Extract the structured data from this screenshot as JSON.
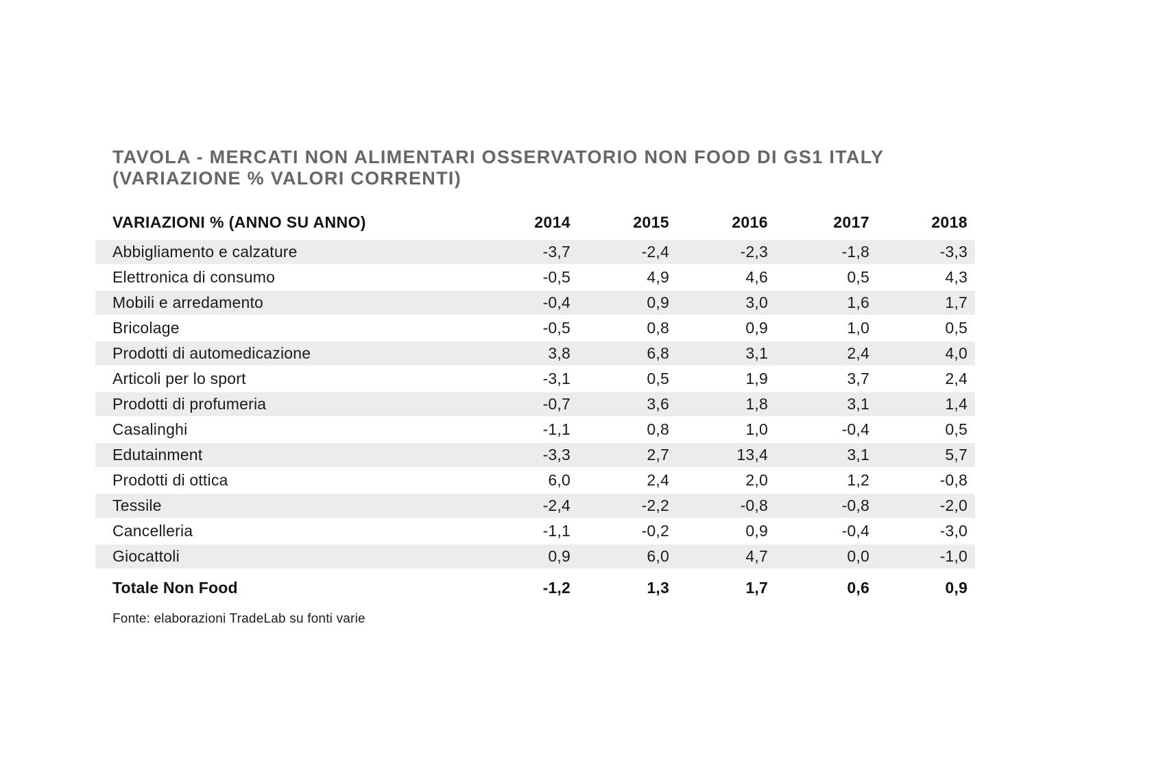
{
  "title": {
    "line1": "TAVOLA - MERCATI NON ALIMENTARI OSSERVATORIO NON FOOD DI GS1 ITALY",
    "line2": "(VARIAZIONE % VALORI CORRENTI)"
  },
  "table": {
    "header": {
      "label": "VARIAZIONI % (ANNO SU ANNO)",
      "years": [
        "2014",
        "2015",
        "2016",
        "2017",
        "2018"
      ]
    },
    "rows": [
      {
        "label": "Abbigliamento e calzature",
        "values": [
          "-3,7",
          "-2,4",
          "-2,3",
          "-1,8",
          "-3,3"
        ]
      },
      {
        "label": "Elettronica di consumo",
        "values": [
          "-0,5",
          "4,9",
          "4,6",
          "0,5",
          "4,3"
        ]
      },
      {
        "label": "Mobili e arredamento",
        "values": [
          "-0,4",
          "0,9",
          "3,0",
          "1,6",
          "1,7"
        ]
      },
      {
        "label": "Bricolage",
        "values": [
          "-0,5",
          "0,8",
          "0,9",
          "1,0",
          "0,5"
        ]
      },
      {
        "label": "Prodotti di automedicazione",
        "values": [
          "3,8",
          "6,8",
          "3,1",
          "2,4",
          "4,0"
        ]
      },
      {
        "label": "Articoli per lo sport",
        "values": [
          "-3,1",
          "0,5",
          "1,9",
          "3,7",
          "2,4"
        ]
      },
      {
        "label": "Prodotti di profumeria",
        "values": [
          "-0,7",
          "3,6",
          "1,8",
          "3,1",
          "1,4"
        ]
      },
      {
        "label": "Casalinghi",
        "values": [
          "-1,1",
          "0,8",
          "1,0",
          "-0,4",
          "0,5"
        ]
      },
      {
        "label": "Edutainment",
        "values": [
          "-3,3",
          "2,7",
          "13,4",
          "3,1",
          "5,7"
        ]
      },
      {
        "label": "Prodotti di ottica",
        "values": [
          "6,0",
          "2,4",
          "2,0",
          "1,2",
          "-0,8"
        ]
      },
      {
        "label": "Tessile",
        "values": [
          "-2,4",
          "-2,2",
          "-0,8",
          "-0,8",
          "-2,0"
        ]
      },
      {
        "label": "Cancelleria",
        "values": [
          "-1,1",
          "-0,2",
          "0,9",
          "-0,4",
          "-3,0"
        ]
      },
      {
        "label": "Giocattoli",
        "values": [
          "0,9",
          "6,0",
          "4,7",
          "0,0",
          "-1,0"
        ]
      }
    ],
    "total": {
      "label": "Totale Non Food",
      "values": [
        "-1,2",
        "1,3",
        "1,7",
        "0,6",
        "0,9"
      ]
    }
  },
  "source": "Fonte: elaborazioni TradeLab su fonti varie",
  "colors": {
    "stripe": "#ececeb",
    "title_gray": "#62676d",
    "text": "#1b1b19"
  },
  "chart_data": {
    "type": "table",
    "title": "TAVOLA - MERCATI NON ALIMENTARI OSSERVATORIO NON FOOD DI GS1 ITALY (VARIAZIONE % VALORI CORRENTI)",
    "categories": [
      2014,
      2015,
      2016,
      2017,
      2018
    ],
    "row_header": "VARIAZIONI % (ANNO SU ANNO)",
    "series": [
      {
        "name": "Abbigliamento e calzature",
        "values": [
          -3.7,
          -2.4,
          -2.3,
          -1.8,
          -3.3
        ]
      },
      {
        "name": "Elettronica di consumo",
        "values": [
          -0.5,
          4.9,
          4.6,
          0.5,
          4.3
        ]
      },
      {
        "name": "Mobili e arredamento",
        "values": [
          -0.4,
          0.9,
          3.0,
          1.6,
          1.7
        ]
      },
      {
        "name": "Bricolage",
        "values": [
          -0.5,
          0.8,
          0.9,
          1.0,
          0.5
        ]
      },
      {
        "name": "Prodotti di automedicazione",
        "values": [
          3.8,
          6.8,
          3.1,
          2.4,
          4.0
        ]
      },
      {
        "name": "Articoli per lo sport",
        "values": [
          -3.1,
          0.5,
          1.9,
          3.7,
          2.4
        ]
      },
      {
        "name": "Prodotti di profumeria",
        "values": [
          -0.7,
          3.6,
          1.8,
          3.1,
          1.4
        ]
      },
      {
        "name": "Casalinghi",
        "values": [
          -1.1,
          0.8,
          1.0,
          -0.4,
          0.5
        ]
      },
      {
        "name": "Edutainment",
        "values": [
          -3.3,
          2.7,
          13.4,
          3.1,
          5.7
        ]
      },
      {
        "name": "Prodotti di ottica",
        "values": [
          6.0,
          2.4,
          2.0,
          1.2,
          -0.8
        ]
      },
      {
        "name": "Tessile",
        "values": [
          -2.4,
          -2.2,
          -0.8,
          -0.8,
          -2.0
        ]
      },
      {
        "name": "Cancelleria",
        "values": [
          -1.1,
          -0.2,
          0.9,
          -0.4,
          -3.0
        ]
      },
      {
        "name": "Giocattoli",
        "values": [
          0.9,
          6.0,
          4.7,
          0.0,
          -1.0
        ]
      },
      {
        "name": "Totale Non Food",
        "values": [
          -1.2,
          1.3,
          1.7,
          0.6,
          0.9
        ]
      }
    ],
    "source_note": "Fonte: elaborazioni TradeLab su fonti varie",
    "units": "percent, comma decimal separator (Italian)"
  }
}
